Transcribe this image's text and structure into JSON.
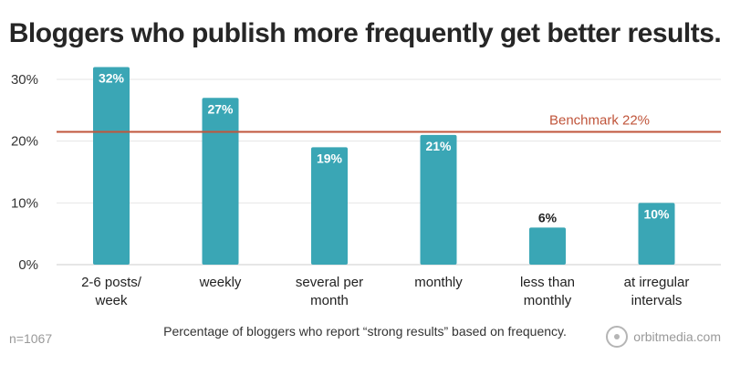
{
  "title": "Bloggers who publish more frequently get better results.",
  "caption": "Percentage of bloggers who report “strong results” based on frequency.",
  "sample_note": "n=1067",
  "logo_text": "orbitmedia.com",
  "colors": {
    "bar": "#3aa6b5",
    "benchmark": "#c0553b",
    "bar_label_inside": "#ffffff",
    "bar_label_outside": "#222222"
  },
  "chart_data": {
    "type": "bar",
    "title": "Bloggers who publish more frequently get better results.",
    "categories": [
      [
        "2-6 posts/",
        "week"
      ],
      [
        "weekly"
      ],
      [
        "several per",
        "month"
      ],
      [
        "monthly"
      ],
      [
        "less than",
        "monthly"
      ],
      [
        "at irregular",
        "intervals"
      ]
    ],
    "values": [
      32,
      27,
      19,
      21,
      6,
      10
    ],
    "value_labels": [
      "32%",
      "27%",
      "19%",
      "21%",
      "6%",
      "10%"
    ],
    "ylim": [
      0,
      30
    ],
    "yticks": [
      0,
      10,
      20,
      30
    ],
    "ytick_labels": [
      "0%",
      "10%",
      "20%",
      "30%"
    ],
    "grid": true,
    "reference_line": {
      "value": 21.5,
      "label": "Benchmark 22%"
    }
  }
}
